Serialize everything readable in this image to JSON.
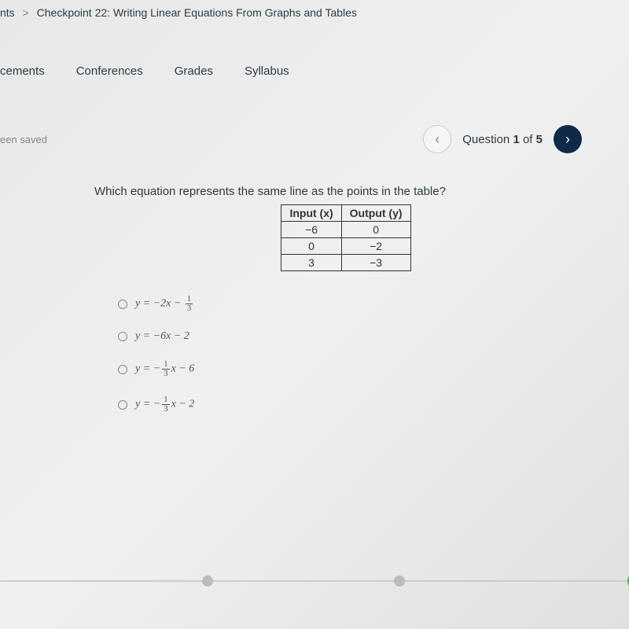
{
  "breadcrumb": {
    "prefix": "nts",
    "sep": ">",
    "title": "Checkpoint 22: Writing Linear Equations From Graphs and Tables"
  },
  "tabs": {
    "announcements": "cements",
    "conferences": "Conferences",
    "grades": "Grades",
    "syllabus": "Syllabus"
  },
  "saved": "een saved",
  "qnav": {
    "prev_glyph": "‹",
    "next_glyph": "›",
    "label_pre": "Question ",
    "current": "1",
    "label_mid": " of ",
    "total": "5"
  },
  "question": {
    "prompt": "Which equation represents the same line as the points in the table?",
    "table": {
      "head_x": "Input (x)",
      "head_y": "Output (y)",
      "rows": [
        {
          "x": "−6",
          "y": "0"
        },
        {
          "x": "0",
          "y": "−2"
        },
        {
          "x": "3",
          "y": "−3"
        }
      ]
    },
    "options": {
      "a": {
        "pre": "y = −2x − ",
        "num": "1",
        "den": "3",
        "post": ""
      },
      "b": {
        "text": "y = −6x − 2"
      },
      "c": {
        "pre": "y = −",
        "num": "1",
        "den": "3",
        "mid": "x − 6"
      },
      "d": {
        "pre": "y = −",
        "num": "1",
        "den": "3",
        "mid": "x − 2"
      }
    }
  },
  "colors": {
    "nav_next_bg": "#0e2a47",
    "progress_active": "#4caf50"
  }
}
